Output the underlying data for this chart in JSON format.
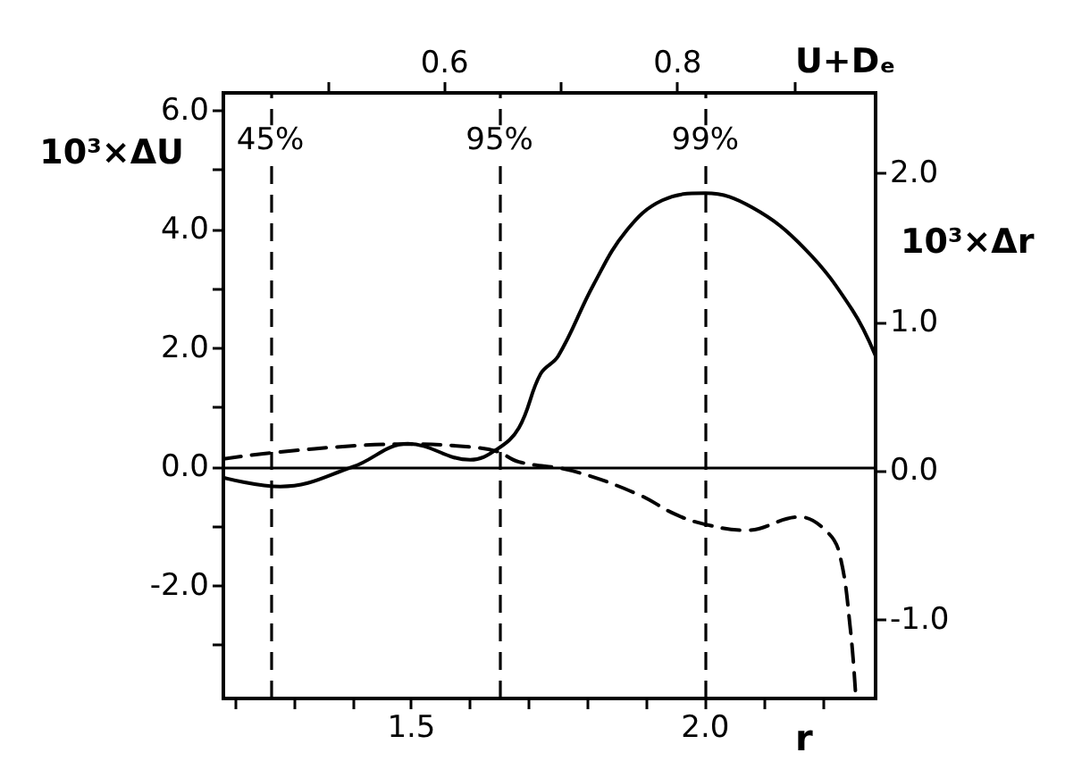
{
  "chart_data": {
    "type": "line",
    "xlabel": "r",
    "ylabel": "10³×ΔU",
    "y2label": "10³×Δr",
    "x2label": "U+Dₑ",
    "xlim": [
      1.18,
      2.29
    ],
    "xticks": [
      {
        "value": 1.2,
        "label": null
      },
      {
        "value": 1.3,
        "label": null
      },
      {
        "value": 1.4,
        "label": null
      },
      {
        "value": 1.5,
        "label": "1.5"
      },
      {
        "value": 1.6,
        "label": null
      },
      {
        "value": 1.7,
        "label": null
      },
      {
        "value": 1.8,
        "label": null
      },
      {
        "value": 1.9,
        "label": null
      },
      {
        "value": 2.0,
        "label": "2.0"
      },
      {
        "value": 2.1,
        "label": null
      },
      {
        "value": 2.2,
        "label": null
      }
    ],
    "x2lim": [
      0.41,
      0.97
    ],
    "x2ticks": [
      {
        "value": 0.5,
        "label": null
      },
      0.6,
      {
        "value": 0.7,
        "label": null
      },
      0.8,
      {
        "value": 0.9,
        "label": null
      }
    ],
    "ylim": [
      -3.9,
      6.3
    ],
    "yticks": [
      {
        "value": -3,
        "label": null
      },
      {
        "value": -2,
        "label": "-2.0"
      },
      {
        "value": -1,
        "label": null
      },
      {
        "value": 0,
        "label": "0.0"
      },
      {
        "value": 1,
        "label": null
      },
      {
        "value": 2,
        "label": "2.0"
      },
      {
        "value": 3,
        "label": null
      },
      {
        "value": 4,
        "label": "4.0"
      },
      {
        "value": 5,
        "label": null
      },
      {
        "value": 6,
        "label": "6.0"
      }
    ],
    "y2lim": [
      -1.53,
      2.54
    ],
    "y2ticks": [
      {
        "value": -1,
        "label": "-1.0"
      },
      {
        "value": 0,
        "label": "0.0"
      },
      {
        "value": 1,
        "label": "1.0"
      },
      {
        "value": 2,
        "label": "2.0"
      }
    ],
    "series": [
      {
        "color": "#000000",
        "line_style": "solid",
        "x": [
          1.18,
          1.277,
          1.4,
          1.494,
          1.6,
          1.646,
          1.683,
          1.72,
          1.75,
          1.81,
          1.866,
          1.927,
          2.0,
          2.08,
          2.17,
          2.25,
          2.29
        ],
        "values": [
          -0.18,
          -0.33,
          0,
          0.39,
          0.12,
          0.3,
          0.66,
          1.57,
          1.87,
          3.07,
          3.98,
          4.49,
          4.61,
          4.37,
          3.67,
          2.65,
          1.87
        ]
      },
      {
        "color": "#000000",
        "line_style": "dashed",
        "axis": "y2",
        "x": [
          1.18,
          1.26,
          1.41,
          1.5,
          1.6,
          1.646,
          1.683,
          1.774,
          1.887,
          1.948,
          2.0,
          2.07,
          2.16,
          2.21,
          2.23,
          2.247,
          2.256
        ],
        "values": [
          0.08,
          0.12,
          0.17,
          0.18,
          0.16,
          0.13,
          0.06,
          0,
          -0.16,
          -0.29,
          -0.36,
          -0.4,
          -0.31,
          -0.42,
          -0.58,
          -1.06,
          -1.5
        ]
      }
    ],
    "ref_lines": [
      {
        "axis": "y",
        "value": 0,
        "line_style": "solid"
      },
      {
        "axis": "x",
        "value": 1.26,
        "line_style": "dashed"
      },
      {
        "axis": "x",
        "value": 1.65,
        "line_style": "dashed"
      },
      {
        "axis": "x",
        "value": 2.0,
        "line_style": "dashed"
      }
    ],
    "annotations": [
      {
        "text": "45%",
        "x": 1.26,
        "y": 5.5
      },
      {
        "text": "95%",
        "x": 1.65,
        "y": 5.5
      },
      {
        "text": "99%",
        "x": 2.0,
        "y": 5.5
      }
    ],
    "marker": "none"
  }
}
